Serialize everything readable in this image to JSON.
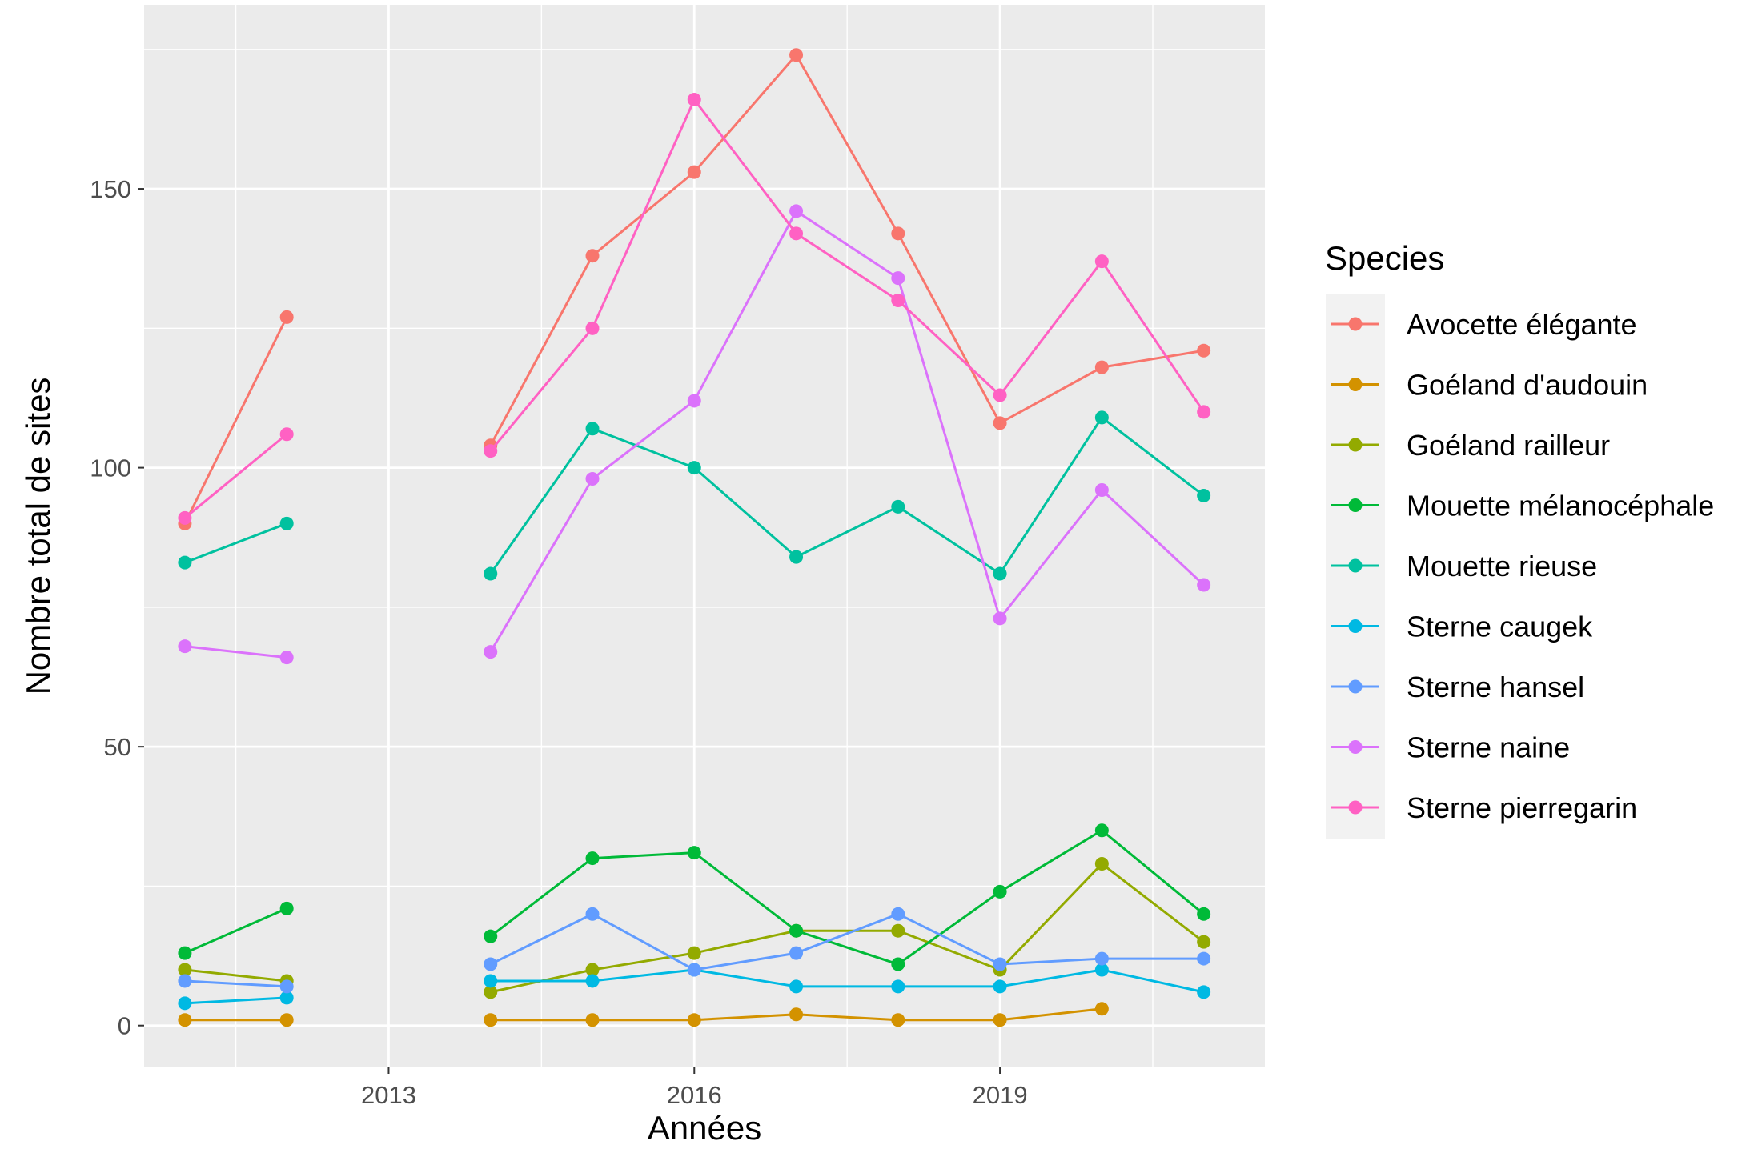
{
  "chart_data": {
    "type": "line",
    "xlabel": "Années",
    "ylabel": "Nombre total de sites",
    "xlim": [
      2010.6,
      2021.6
    ],
    "ylim": [
      -7.5,
      183
    ],
    "x_ticks": [
      2013,
      2016,
      2019
    ],
    "y_ticks": [
      0,
      50,
      100,
      150
    ],
    "grid": true,
    "legend": {
      "title": "Species",
      "placement": "right"
    },
    "series": [
      {
        "name": "Avocette élégante",
        "color": "#F8766D",
        "points": [
          [
            2011,
            90
          ],
          [
            2012,
            127
          ],
          [
            2014,
            104
          ],
          [
            2015,
            138
          ],
          [
            2016,
            153
          ],
          [
            2017,
            174
          ],
          [
            2018,
            142
          ],
          [
            2019,
            108
          ],
          [
            2020,
            118
          ],
          [
            2021,
            121
          ]
        ]
      },
      {
        "name": "Goéland d'audouin",
        "color": "#D39200",
        "points": [
          [
            2011,
            1
          ],
          [
            2012,
            1
          ],
          [
            2014,
            1
          ],
          [
            2015,
            1
          ],
          [
            2016,
            1
          ],
          [
            2017,
            2
          ],
          [
            2018,
            1
          ],
          [
            2019,
            1
          ],
          [
            2020,
            3
          ]
        ]
      },
      {
        "name": "Goéland railleur",
        "color": "#93AA00",
        "points": [
          [
            2011,
            10
          ],
          [
            2012,
            8
          ],
          [
            2014,
            6
          ],
          [
            2015,
            10
          ],
          [
            2016,
            13
          ],
          [
            2017,
            17
          ],
          [
            2018,
            17
          ],
          [
            2019,
            10
          ],
          [
            2020,
            29
          ],
          [
            2021,
            15
          ]
        ]
      },
      {
        "name": "Mouette mélanocéphale",
        "color": "#00BA38",
        "points": [
          [
            2011,
            13
          ],
          [
            2012,
            21
          ],
          [
            2014,
            16
          ],
          [
            2015,
            30
          ],
          [
            2016,
            31
          ],
          [
            2017,
            17
          ],
          [
            2018,
            11
          ],
          [
            2019,
            24
          ],
          [
            2020,
            35
          ],
          [
            2021,
            20
          ]
        ]
      },
      {
        "name": "Mouette rieuse",
        "color": "#00C19F",
        "points": [
          [
            2011,
            83
          ],
          [
            2012,
            90
          ],
          [
            2014,
            81
          ],
          [
            2015,
            107
          ],
          [
            2016,
            100
          ],
          [
            2017,
            84
          ],
          [
            2018,
            93
          ],
          [
            2019,
            81
          ],
          [
            2020,
            109
          ],
          [
            2021,
            95
          ]
        ]
      },
      {
        "name": "Sterne caugek",
        "color": "#00B9E3",
        "points": [
          [
            2011,
            4
          ],
          [
            2012,
            5
          ],
          [
            2014,
            8
          ],
          [
            2015,
            8
          ],
          [
            2016,
            10
          ],
          [
            2017,
            7
          ],
          [
            2018,
            7
          ],
          [
            2019,
            7
          ],
          [
            2020,
            10
          ],
          [
            2021,
            6
          ]
        ]
      },
      {
        "name": "Sterne hansel",
        "color": "#619CFF",
        "points": [
          [
            2011,
            8
          ],
          [
            2012,
            7
          ],
          [
            2014,
            11
          ],
          [
            2015,
            20
          ],
          [
            2016,
            10
          ],
          [
            2017,
            13
          ],
          [
            2018,
            20
          ],
          [
            2019,
            11
          ],
          [
            2020,
            12
          ],
          [
            2021,
            12
          ]
        ]
      },
      {
        "name": "Sterne naine",
        "color": "#DB72FB",
        "points": [
          [
            2011,
            68
          ],
          [
            2012,
            66
          ],
          [
            2014,
            67
          ],
          [
            2015,
            98
          ],
          [
            2016,
            112
          ],
          [
            2017,
            146
          ],
          [
            2018,
            134
          ],
          [
            2019,
            73
          ],
          [
            2020,
            96
          ],
          [
            2021,
            79
          ]
        ]
      },
      {
        "name": "Sterne pierregarin",
        "color": "#FF61C3",
        "points": [
          [
            2011,
            91
          ],
          [
            2012,
            106
          ],
          [
            2014,
            103
          ],
          [
            2015,
            125
          ],
          [
            2016,
            166
          ],
          [
            2017,
            142
          ],
          [
            2018,
            130
          ],
          [
            2019,
            113
          ],
          [
            2020,
            137
          ],
          [
            2021,
            110
          ]
        ]
      }
    ]
  }
}
